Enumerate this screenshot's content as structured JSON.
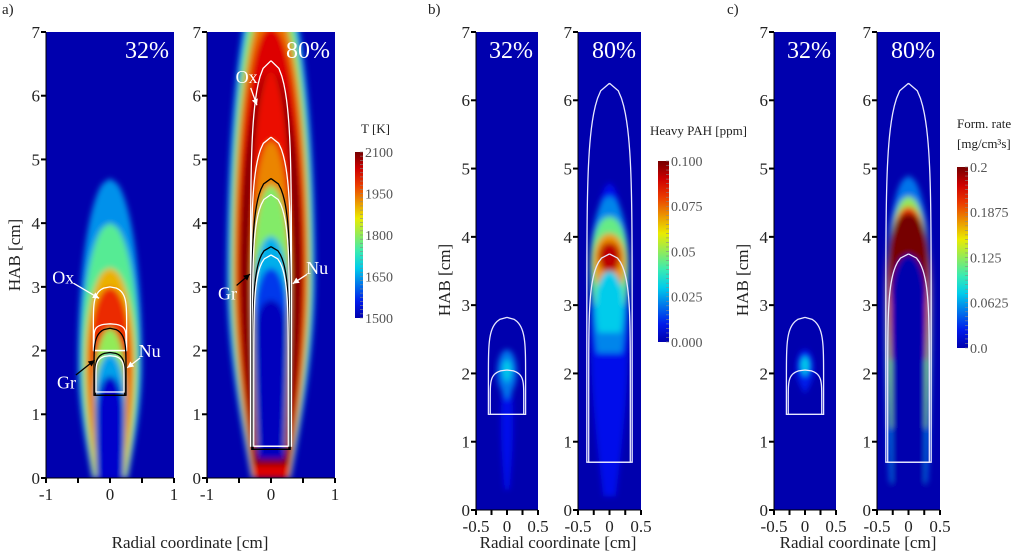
{
  "chart_data": {
    "type": "heatmap",
    "figure_panels": [
      {
        "id": "a",
        "label": "a)",
        "ylabel": "HAB [cm]",
        "xlabel": "Radial coordinate [cm]",
        "xlim": [
          -1,
          1
        ],
        "ylim": [
          0,
          7
        ],
        "xticks": [
          "-1",
          "0",
          "1"
        ],
        "yticks": [
          "0",
          "1",
          "2",
          "3",
          "4",
          "5",
          "6",
          "7"
        ],
        "colorbar": {
          "title": [
            "T [K]"
          ],
          "range": [
            1500,
            2100
          ],
          "ticks": [
            "1500",
            "1650",
            "1800",
            "1950",
            "2100"
          ]
        },
        "cases": [
          {
            "label": "32%",
            "regions": [
              {
                "v": 1640,
                "hb": 0,
                "b0": 0.28,
                "wm": 0.5,
                "hm": 1.8,
                "ht": 4.7
              },
              {
                "v": 1760,
                "hb": 0,
                "b0": 0.26,
                "wm": 0.45,
                "hm": 1.8,
                "ht": 4.0
              },
              {
                "v": 1900,
                "hb": 0,
                "b0": 0.24,
                "wm": 0.39,
                "hm": 1.8,
                "ht": 3.3
              },
              {
                "v": 1990,
                "hb": 0.3,
                "b0": 0.22,
                "wm": 0.33,
                "hm": 1.8,
                "ht": 3.0
              },
              {
                "v": 1800,
                "hb": 0,
                "b0": 0.22,
                "wm": 0.25,
                "hm": 1.3,
                "ht": 2.35
              },
              {
                "v": 1650,
                "hb": 0,
                "b0": 0.21,
                "wm": 0.23,
                "hm": 1.2,
                "ht": 1.95
              },
              {
                "v": 1520,
                "hb": 0,
                "b0": 0.2,
                "wm": 0.21,
                "hm": 1.0,
                "ht": 1.6
              }
            ],
            "contours": [
              {
                "color": "#ffffff",
                "base": 2.0,
                "apex": 3.0,
                "w": 0.26,
                "closed": true
              },
              {
                "color": "#ffffff",
                "base": 2.0,
                "apex": 2.42,
                "w": 0.25,
                "closed": false
              },
              {
                "color": "#000000",
                "base": 1.3,
                "apex": 2.35,
                "w": 0.25,
                "closed": false
              },
              {
                "color": "#000000",
                "base": 1.3,
                "apex": 1.97,
                "w": 0.23,
                "closed": false
              },
              {
                "color": "#ffffff",
                "base": 1.35,
                "apex": 1.92,
                "w": 0.22,
                "closed": false
              }
            ],
            "annotations": [
              {
                "text": "Ox",
                "at": [
                  -0.73,
                  3.15
                ],
                "to": [
                  -0.17,
                  2.82
                ],
                "arrow": "#ffffff"
              },
              {
                "text": "Nu",
                "at": [
                  0.62,
                  2.0
                ],
                "to": [
                  0.27,
                  1.73
                ],
                "arrow": "#ffffff"
              },
              {
                "text": "Gr",
                "at": [
                  -0.68,
                  1.5
                ],
                "to": [
                  -0.24,
                  1.85
                ],
                "arrow": "#000000"
              }
            ]
          },
          {
            "label": "80%",
            "regions": [
              {
                "v": 1650,
                "hb": 0,
                "b0": 0.31,
                "wm": 0.69,
                "hm": 3.2,
                "ht": 8.2
              },
              {
                "v": 1790,
                "hb": 0,
                "b0": 0.29,
                "wm": 0.63,
                "hm": 3.2,
                "ht": 7.9
              },
              {
                "v": 1940,
                "hb": 0,
                "b0": 0.28,
                "wm": 0.58,
                "hm": 3.2,
                "ht": 7.5
              },
              {
                "v": 2030,
                "hb": 0,
                "b0": 0.27,
                "wm": 0.53,
                "hm": 3.2,
                "ht": 7.1
              },
              {
                "v": 2095,
                "hb": 0.2,
                "b0": 0.26,
                "wm": 0.48,
                "hm": 3.2,
                "ht": 6.4
              },
              {
                "v": 2010,
                "hb": 0.5,
                "b0": 0.24,
                "wm": 0.33,
                "hm": 3.2,
                "ht": 6.4
              },
              {
                "v": 1930,
                "hb": 0.5,
                "b0": 0.23,
                "wm": 0.3,
                "hm": 3.2,
                "ht": 5.3
              },
              {
                "v": 1790,
                "hb": 0.5,
                "b0": 0.22,
                "wm": 0.29,
                "hm": 3.0,
                "ht": 4.6
              },
              {
                "v": 1660,
                "hb": 0.4,
                "b0": 0.21,
                "wm": 0.27,
                "hm": 2.8,
                "ht": 3.8
              },
              {
                "v": 1580,
                "hb": 0.3,
                "b0": 0.2,
                "wm": 0.25,
                "hm": 2.5,
                "ht": 3.3
              },
              {
                "v": 1510,
                "hb": 0.3,
                "b0": 0.19,
                "wm": 0.24,
                "hm": 2.3,
                "ht": 2.8
              }
            ],
            "contours": [
              {
                "color": "#ffffff",
                "base": 0.5,
                "apex": 6.55,
                "w": 0.32,
                "closed": false
              },
              {
                "color": "#ffffff",
                "base": 0.5,
                "apex": 5.35,
                "w": 0.31,
                "closed": false
              },
              {
                "color": "#000000",
                "base": 0.45,
                "apex": 4.7,
                "w": 0.3,
                "closed": false
              },
              {
                "color": "#ffffff",
                "base": 0.5,
                "apex": 4.45,
                "w": 0.29,
                "closed": false
              },
              {
                "color": "#000000",
                "base": 0.45,
                "apex": 3.63,
                "w": 0.28,
                "closed": false
              },
              {
                "color": "#ffffff",
                "base": 0.5,
                "apex": 3.5,
                "w": 0.27,
                "closed": false
              }
            ],
            "annotations": [
              {
                "text": "Ox",
                "at": [
                  -0.38,
                  6.3
                ],
                "to": [
                  -0.22,
                  5.85
                ],
                "arrow": "#ffffff"
              },
              {
                "text": "Nu",
                "at": [
                  0.72,
                  3.3
                ],
                "to": [
                  0.34,
                  3.05
                ],
                "arrow": "#ffffff"
              },
              {
                "text": "Gr",
                "at": [
                  -0.68,
                  2.9
                ],
                "to": [
                  -0.33,
                  3.2
                ],
                "arrow": "#000000"
              }
            ]
          }
        ]
      },
      {
        "id": "b",
        "label": "b)",
        "ylabel": "HAB [cm]",
        "xlabel": "Radial coordinate [cm]",
        "xlim": [
          -0.5,
          0.5
        ],
        "ylim": [
          0,
          7
        ],
        "xticks": [
          "-0.5",
          "0",
          "0.5"
        ],
        "yticks": [
          "0",
          "1",
          "2",
          "3",
          "4",
          "5",
          "6",
          "7"
        ],
        "colorbar": {
          "title": [
            "Heavy PAH [ppm]"
          ],
          "range": [
            0,
            0.1
          ],
          "ticks": [
            "0.000",
            "0.025",
            "0.05",
            "0.075",
            "0.100"
          ]
        },
        "cases": [
          {
            "label": "32%",
            "regions": [
              {
                "v": 0.008,
                "hb": 0.3,
                "b0": 0.04,
                "wm": 0.1,
                "hm": 1.3,
                "ht": 2.0
              },
              {
                "v": 0.02,
                "hb": 1.6,
                "b0": 0.0,
                "wm": 0.16,
                "hm": 2.0,
                "ht": 2.35
              },
              {
                "v": 0.03,
                "hb": 1.85,
                "b0": 0.0,
                "wm": 0.07,
                "hm": 2.05,
                "ht": 2.2
              }
            ],
            "contours": [
              {
                "color": "#e8e8ff",
                "base": 1.4,
                "apex": 2.82,
                "w": 0.3,
                "closed": false
              },
              {
                "color": "#e8e8ff",
                "base": 1.4,
                "apex": 2.05,
                "w": 0.27,
                "closed": false
              }
            ]
          },
          {
            "label": "80%",
            "regions": [
              {
                "v": 0.008,
                "hb": 0.2,
                "b0": 0.1,
                "wm": 0.3,
                "hm": 2.6,
                "ht": 4.8
              },
              {
                "v": 0.022,
                "hb": 2.3,
                "b0": 0.2,
                "wm": 0.31,
                "hm": 3.5,
                "ht": 4.6
              },
              {
                "v": 0.045,
                "hb": 3.0,
                "b0": 0.24,
                "wm": 0.3,
                "hm": 3.6,
                "ht": 4.3
              },
              {
                "v": 0.07,
                "hb": 3.3,
                "b0": 0.2,
                "wm": 0.25,
                "hm": 3.65,
                "ht": 4.05
              },
              {
                "v": 0.092,
                "hb": 3.5,
                "b0": 0.1,
                "wm": 0.17,
                "hm": 3.72,
                "ht": 3.92
              },
              {
                "v": 0.03,
                "hb": 2.6,
                "b0": 0.18,
                "wm": 0.22,
                "hm": 3.0,
                "ht": 3.5
              }
            ],
            "contours": [
              {
                "color": "#e8e8ff",
                "base": 0.7,
                "apex": 6.25,
                "w": 0.36,
                "closed": false
              },
              {
                "color": "#e8e8ff",
                "base": 0.7,
                "apex": 3.75,
                "w": 0.33,
                "closed": false
              }
            ]
          }
        ]
      },
      {
        "id": "c",
        "label": "c)",
        "ylabel": "HAB [cm]",
        "xlabel": "Radial coordinate [cm]",
        "xlim": [
          -0.5,
          0.5
        ],
        "ylim": [
          0,
          7
        ],
        "xticks": [
          "-0.5",
          "0",
          "0.5"
        ],
        "yticks": [
          "0",
          "1",
          "2",
          "3",
          "4",
          "5",
          "6",
          "7"
        ],
        "colorbar": {
          "title": [
            "Form. rate",
            "[mg/cm³s]"
          ],
          "range": [
            0,
            0.2
          ],
          "ticks": [
            "0.0",
            "0.0625",
            "0.125",
            "0.1875",
            "0.2"
          ]
        },
        "cases": [
          {
            "label": "32%",
            "regions": [
              {
                "v": 0.02,
                "hb": 1.7,
                "b0": 0.0,
                "wm": 0.14,
                "hm": 2.05,
                "ht": 2.35
              },
              {
                "v": 0.06,
                "hb": 1.95,
                "b0": 0.0,
                "wm": 0.07,
                "hm": 2.12,
                "ht": 2.25
              }
            ],
            "contours": [
              {
                "color": "#e8e8ff",
                "base": 1.4,
                "apex": 2.82,
                "w": 0.3,
                "closed": false
              },
              {
                "color": "#e8e8ff",
                "base": 1.4,
                "apex": 2.05,
                "w": 0.27,
                "closed": false
              }
            ]
          },
          {
            "label": "80%",
            "regions": [
              {
                "v": 0.04,
                "hb": 0.4,
                "b0": 0.3,
                "wm": 0.37,
                "hm": 3.0,
                "ht": 4.9
              },
              {
                "v": 0.1,
                "hb": 1.2,
                "b0": 0.3,
                "wm": 0.35,
                "hm": 3.2,
                "ht": 4.6
              },
              {
                "v": 0.16,
                "hb": 2.2,
                "b0": 0.3,
                "wm": 0.34,
                "hm": 3.4,
                "ht": 4.45
              },
              {
                "v": 0.2,
                "hb": 3.0,
                "b0": 0.28,
                "wm": 0.32,
                "hm": 3.7,
                "ht": 4.35
              },
              {
                "v": 0.0,
                "hb": 0.0,
                "b0": 0.26,
                "wm": 0.28,
                "hm": 3.0,
                "ht": 3.75
              }
            ],
            "contours": [
              {
                "color": "#e8e8ff",
                "base": 0.7,
                "apex": 6.25,
                "w": 0.36,
                "closed": false
              },
              {
                "color": "#e8e8ff",
                "base": 0.7,
                "apex": 3.75,
                "w": 0.33,
                "closed": false
              }
            ]
          }
        ]
      }
    ]
  }
}
